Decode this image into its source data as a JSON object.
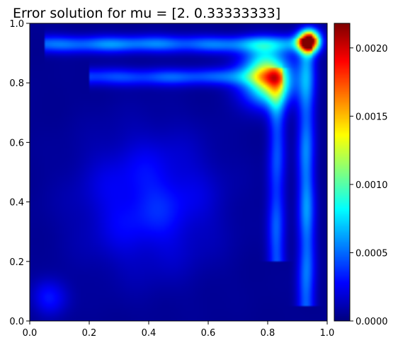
{
  "chart_data": {
    "type": "heatmap",
    "title": "Error solution for mu = [2.          0.33333333]",
    "xlabel": "",
    "ylabel": "",
    "xlim": [
      0.0,
      1.0
    ],
    "ylim": [
      0.0,
      1.0
    ],
    "x_ticks": [
      "0.0",
      "0.2",
      "0.4",
      "0.6",
      "0.8",
      "1.0"
    ],
    "y_ticks": [
      "0.0",
      "0.2",
      "0.4",
      "0.6",
      "0.8",
      "1.0"
    ],
    "colorbar": {
      "colormap": "jet",
      "range": [
        0.0,
        0.00218
      ],
      "ticks": [
        "0.0000",
        "0.0005",
        "0.0010",
        "0.0015",
        "0.0020"
      ]
    },
    "features": [
      {
        "x": 0.94,
        "y": 0.94,
        "value": 0.0021,
        "spread": 0.025
      },
      {
        "x": 0.8,
        "y": 0.82,
        "value": 0.0013,
        "spread": 0.06
      },
      {
        "x": 0.4,
        "y": 0.4,
        "value": 0.0003,
        "spread": 0.15
      },
      {
        "x": 0.07,
        "y": 0.08,
        "value": 0.0003,
        "spread": 0.04
      }
    ],
    "ridges": [
      {
        "orientation": "horizontal",
        "at": 0.93,
        "from": 0.05,
        "to": 0.95,
        "value": 0.0005
      },
      {
        "orientation": "vertical",
        "at": 0.93,
        "from": 0.05,
        "to": 0.95,
        "value": 0.0005
      },
      {
        "orientation": "horizontal",
        "at": 0.82,
        "from": 0.2,
        "to": 0.85,
        "value": 0.0004
      },
      {
        "orientation": "vertical",
        "at": 0.83,
        "from": 0.2,
        "to": 0.85,
        "value": 0.0004
      }
    ]
  }
}
